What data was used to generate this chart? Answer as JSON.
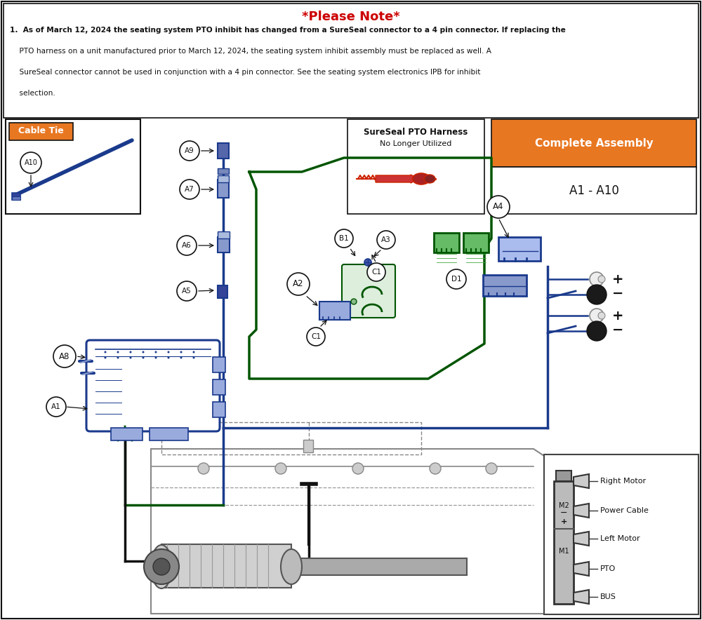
{
  "title": "*Please Note*",
  "title_color": "#cc0000",
  "note_lines": [
    "1.  As of March 12, 2024 the seating system PTO inhibit has changed from a SureSeal connector to a 4 pin connector. If replacing the",
    "    PTO harness on a unit manufactured prior to March 12, 2024, the seating system inhibit assembly must be replaced as well. A",
    "    SureSeal connector cannot be used in conjunction with a 4 pin connector. See the seating system electronics IPB for inhibit",
    "    selection."
  ],
  "cable_tie_label": "Cable Tie",
  "orange": "#e87722",
  "complete_assembly_label": "Complete Assembly",
  "complete_assembly_range": "A1 - A10",
  "sureseal_label": "SureSeal PTO Harness",
  "sureseal_sub": "No Longer Utilized",
  "bg": "#ffffff",
  "black": "#111111",
  "blue": "#1a3a8c",
  "blue_light": "#4466bb",
  "green": "#005500",
  "red": "#cc2200",
  "gray": "#888888",
  "gray_light": "#cccccc",
  "gray_med": "#999999"
}
